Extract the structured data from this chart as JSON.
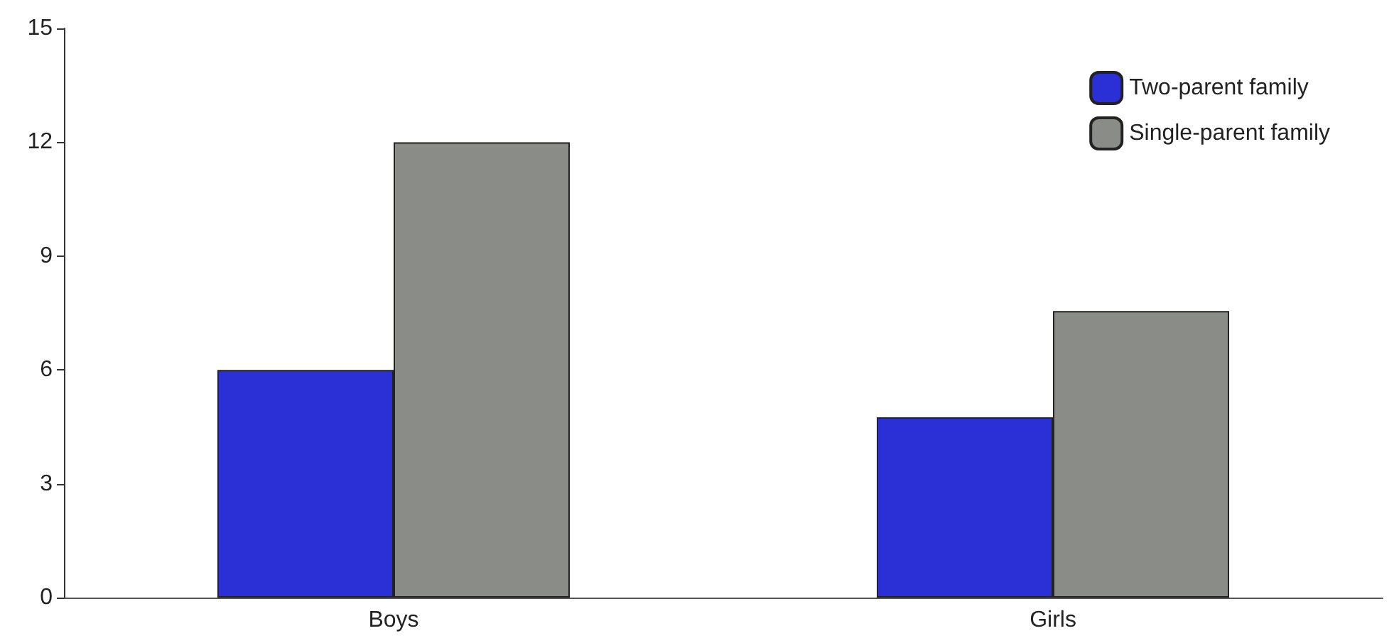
{
  "chart_data": {
    "type": "bar",
    "categories": [
      "Boys",
      "Girls"
    ],
    "series": [
      {
        "name": "Two-parent family",
        "color": "#2b2fd6",
        "values": [
          6,
          4.75
        ]
      },
      {
        "name": "Single-parent family",
        "color": "#8a8c88",
        "values": [
          12,
          7.55
        ]
      }
    ],
    "ylim": [
      0,
      15
    ],
    "yticks": [
      0,
      3,
      6,
      9,
      12,
      15
    ],
    "grid": false,
    "legend": "top right"
  }
}
